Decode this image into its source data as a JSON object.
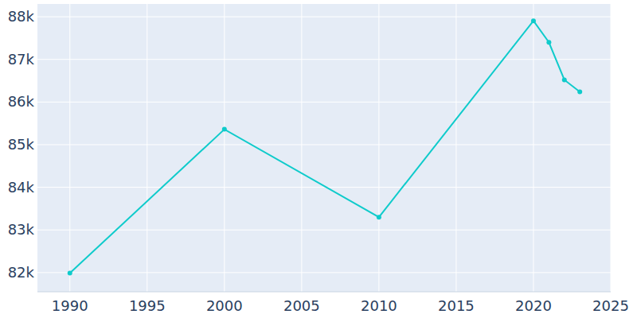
{
  "chart_data": {
    "type": "line",
    "x": [
      1990,
      2000,
      2010,
      2020,
      2021,
      2022,
      2023
    ],
    "values": [
      81988,
      85361,
      83300,
      87906,
      87400,
      86520,
      86240
    ],
    "color": "#0fcbcb",
    "marker": "circle",
    "xlim": [
      1987.9,
      2025
    ],
    "xticks": [
      1990,
      1995,
      2000,
      2005,
      2010,
      2015,
      2020,
      2025
    ],
    "ylim": [
      81550,
      88300
    ],
    "yticks": [
      {
        "value": 82000,
        "label": "82k"
      },
      {
        "value": 83000,
        "label": "83k"
      },
      {
        "value": 84000,
        "label": "84k"
      },
      {
        "value": 85000,
        "label": "85k"
      },
      {
        "value": 86000,
        "label": "86k"
      },
      {
        "value": 87000,
        "label": "87k"
      },
      {
        "value": 88000,
        "label": "88k"
      }
    ],
    "grid": true
  }
}
